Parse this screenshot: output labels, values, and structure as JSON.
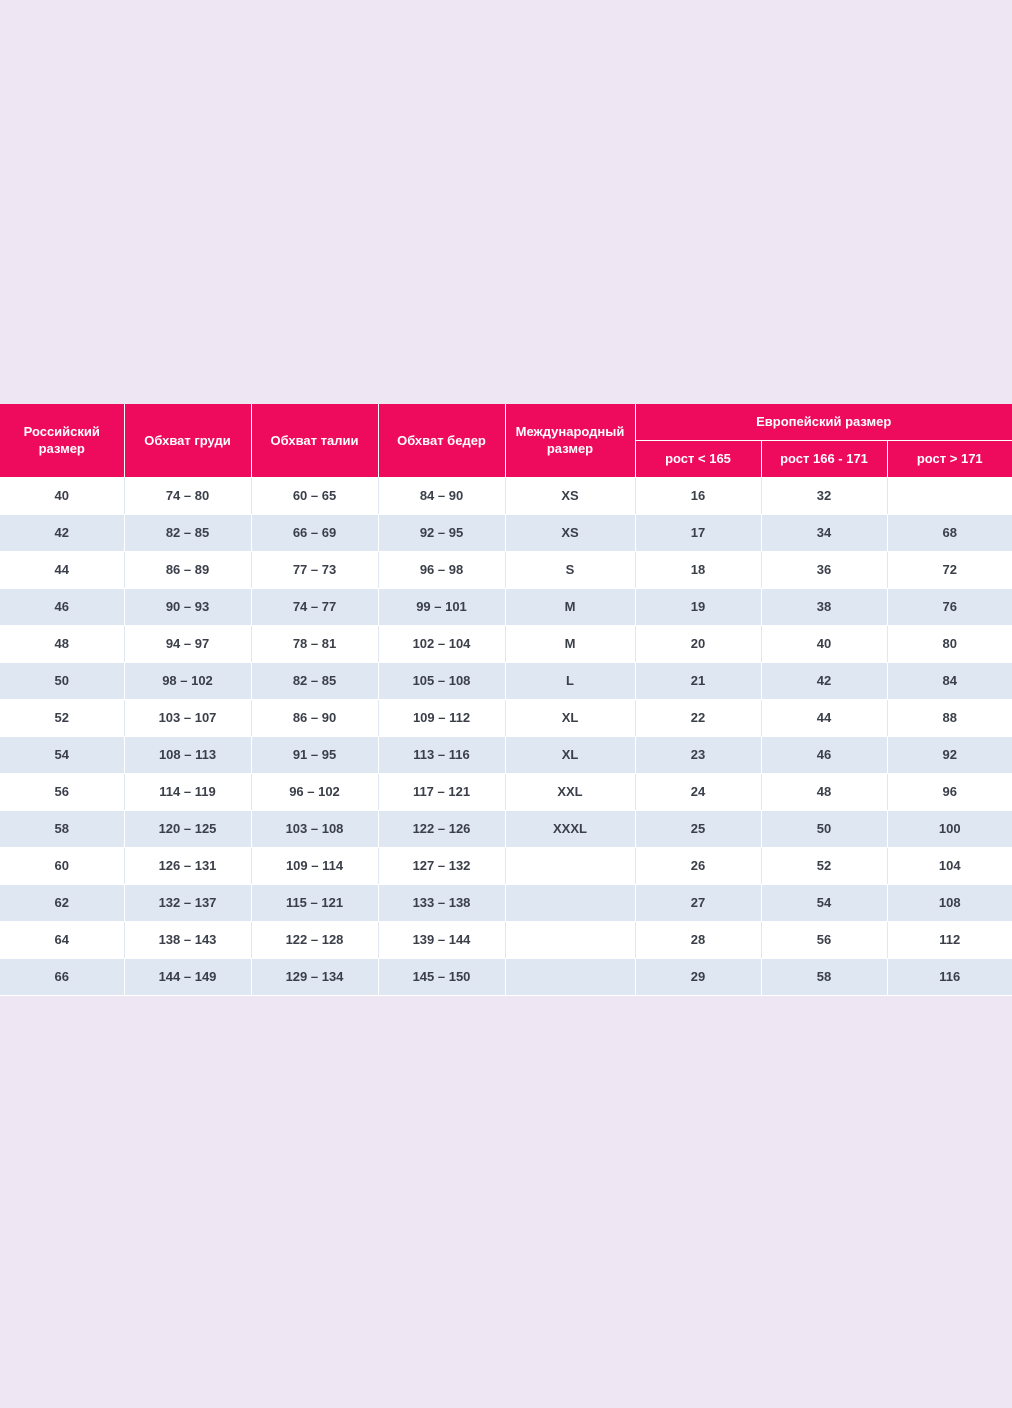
{
  "table": {
    "headers": {
      "ru_size": "Российский размер",
      "chest": "Обхват груди",
      "waist": "Обхват талии",
      "hips": "Обхват бедер",
      "intl_size": "Международный размер",
      "eu_size": "Европейский размер",
      "eu_sub": [
        "рост < 165",
        "рост 166 - 171",
        "рост > 171"
      ]
    },
    "rows": [
      [
        "40",
        "74 – 80",
        "60 – 65",
        "84 – 90",
        "XS",
        "16",
        "32",
        ""
      ],
      [
        "42",
        "82 – 85",
        "66 – 69",
        "92 – 95",
        "XS",
        "17",
        "34",
        "68"
      ],
      [
        "44",
        "86 – 89",
        "77 – 73",
        "96 – 98",
        "S",
        "18",
        "36",
        "72"
      ],
      [
        "46",
        "90 – 93",
        "74 – 77",
        "99 – 101",
        "M",
        "19",
        "38",
        "76"
      ],
      [
        "48",
        "94 – 97",
        "78 – 81",
        "102 – 104",
        "M",
        "20",
        "40",
        "80"
      ],
      [
        "50",
        "98 – 102",
        "82 – 85",
        "105 – 108",
        "L",
        "21",
        "42",
        "84"
      ],
      [
        "52",
        "103 – 107",
        "86 – 90",
        "109 – 112",
        "XL",
        "22",
        "44",
        "88"
      ],
      [
        "54",
        "108 – 113",
        "91 – 95",
        "113 – 116",
        "XL",
        "23",
        "46",
        "92"
      ],
      [
        "56",
        "114 – 119",
        "96 – 102",
        "117 – 121",
        "XXL",
        "24",
        "48",
        "96"
      ],
      [
        "58",
        "120 – 125",
        "103 – 108",
        "122 – 126",
        "XXXL",
        "25",
        "50",
        "100"
      ],
      [
        "60",
        "126 – 131",
        "109 – 114",
        "127 – 132",
        "",
        "26",
        "52",
        "104"
      ],
      [
        "62",
        "132 – 137",
        "115 – 121",
        "133 – 138",
        "",
        "27",
        "54",
        "108"
      ],
      [
        "64",
        "138 – 143",
        "122 – 128",
        "139 – 144",
        "",
        "28",
        "56",
        "112"
      ],
      [
        "66",
        "144 – 149",
        "129 – 134",
        "145 – 150",
        "",
        "29",
        "58",
        "116"
      ]
    ]
  },
  "colors": {
    "header_bg": "#ee0a5c",
    "header_text": "#ffffff",
    "row_alt": "#dfe7f2",
    "row_plain": "#ffffff",
    "cell_text": "#3b3f4a",
    "page_bg": "#efe6f4"
  }
}
